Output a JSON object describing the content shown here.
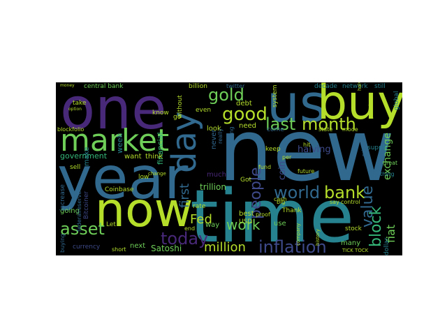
{
  "colors": {
    "background": "#000000",
    "palette": [
      "#440154",
      "#482878",
      "#3e4a89",
      "#31688e",
      "#26828e",
      "#1f9e89",
      "#35b779",
      "#6ece58",
      "#b5de2b",
      "#fde725"
    ]
  },
  "words": [
    {
      "text": "new",
      "color": "#31688e"
    },
    {
      "text": "year",
      "color": "#31688e"
    },
    {
      "text": "time",
      "color": "#26828e"
    },
    {
      "text": "now",
      "color": "#b5de2b"
    },
    {
      "text": "one",
      "color": "#482878"
    },
    {
      "text": "us",
      "color": "#31688e"
    },
    {
      "text": "buy",
      "color": "#b5de2b"
    },
    {
      "text": "market",
      "color": "#6ece58"
    },
    {
      "text": "day",
      "color": "#31688e"
    },
    {
      "text": "good",
      "color": "#b5de2b"
    },
    {
      "text": "gold",
      "color": "#6ece58"
    },
    {
      "text": "last",
      "color": "#6ece58"
    },
    {
      "text": "month",
      "color": "#b5de2b"
    },
    {
      "text": "world",
      "color": "#31688e"
    },
    {
      "text": "bank",
      "color": "#b5de2b"
    },
    {
      "text": "asset",
      "color": "#31688e"
    },
    {
      "text": "value",
      "color": "#35b779"
    },
    {
      "text": "block",
      "color": "#3e4a89"
    },
    {
      "text": "people",
      "color": "#6ece58"
    },
    {
      "text": "today",
      "color": "#482878"
    },
    {
      "text": "inflation",
      "color": "#3e4a89"
    },
    {
      "text": "work",
      "color": "#6ece58"
    },
    {
      "text": "million",
      "color": "#b5de2b"
    },
    {
      "text": "first",
      "color": "#31688e"
    },
    {
      "text": "Fed",
      "color": "#b5de2b"
    },
    {
      "text": "fiat",
      "color": "#6ece58"
    },
    {
      "text": "exchange",
      "color": "#6ece58"
    },
    {
      "text": "halving",
      "color": "#3e4a89"
    },
    {
      "text": "coin",
      "color": "#3e4a89"
    },
    {
      "text": "trillion",
      "color": "#6ece58"
    },
    {
      "text": "Satoshi",
      "color": "#6ece58"
    },
    {
      "text": "people",
      "color": "#6ece58"
    },
    {
      "text": "government",
      "color": "#35b779"
    },
    {
      "text": "financial",
      "color": "#35b779"
    },
    {
      "text": "week",
      "color": "#26828e"
    },
    {
      "text": "make",
      "color": "#26828e"
    },
    {
      "text": "central bank",
      "color": "#6ece58"
    },
    {
      "text": "want",
      "color": "#b5de2b"
    },
    {
      "text": "think",
      "color": "#b5de2b"
    },
    {
      "text": "debt",
      "color": "#b5de2b"
    },
    {
      "text": "need",
      "color": "#b5de2b"
    },
    {
      "text": "look",
      "color": "#b5de2b"
    },
    {
      "text": "never",
      "color": "#31688e"
    },
    {
      "text": "much",
      "color": "#482878"
    },
    {
      "text": "use",
      "color": "#6ece58"
    },
    {
      "text": "way",
      "color": "#6ece58"
    },
    {
      "text": "best",
      "color": "#b5de2b"
    },
    {
      "text": "USD",
      "color": "#b5de2b"
    },
    {
      "text": "many",
      "color": "#6ece58"
    },
    {
      "text": "next",
      "color": "#6ece58"
    },
    {
      "text": "going",
      "color": "#6ece58"
    },
    {
      "text": "system",
      "color": "#b5de2b"
    },
    {
      "text": "keep",
      "color": "#b5de2b"
    },
    {
      "text": "come",
      "color": "#31688e"
    },
    {
      "text": "go",
      "color": "#b5de2b"
    },
    {
      "text": "know",
      "color": "#b5de2b"
    },
    {
      "text": "even",
      "color": "#b5de2b"
    },
    {
      "text": "billion",
      "color": "#b5de2b"
    },
    {
      "text": "without",
      "color": "#b5de2b"
    },
    {
      "text": "take",
      "color": "#b5de2b"
    },
    {
      "text": "sell",
      "color": "#b5de2b"
    },
    {
      "text": "increase",
      "color": "#31688e"
    },
    {
      "text": "Bitcoiner",
      "color": "#3e4a89"
    },
    {
      "text": "federalreserve",
      "color": "#31688e"
    },
    {
      "text": "buying",
      "color": "#31688e"
    },
    {
      "text": "currency",
      "color": "#3e4a89"
    },
    {
      "text": "short",
      "color": "#b5de2b"
    },
    {
      "text": "Coinbase",
      "color": "#b5de2b"
    },
    {
      "text": "low",
      "color": "#b5de2b"
    },
    {
      "text": "rate",
      "color": "#b5de2b"
    },
    {
      "text": "Let",
      "color": "#b5de2b"
    },
    {
      "text": "Got",
      "color": "#b5de2b"
    },
    {
      "text": "fund",
      "color": "#b5de2b"
    },
    {
      "text": "Thank",
      "color": "#b5de2b"
    },
    {
      "text": "stock",
      "color": "#b5de2b"
    },
    {
      "text": "dollar",
      "color": "#26828e"
    },
    {
      "text": "supply",
      "color": "#26828e"
    },
    {
      "text": "network",
      "color": "#26828e"
    },
    {
      "text": "decade",
      "color": "#26828e"
    },
    {
      "text": "still",
      "color": "#26828e"
    },
    {
      "text": "global",
      "color": "#26828e"
    },
    {
      "text": "thing",
      "color": "#26828e"
    },
    {
      "text": "great",
      "color": "#6ece58"
    },
    {
      "text": "hit",
      "color": "#b5de2b"
    },
    {
      "text": "end",
      "color": "#b5de2b"
    },
    {
      "text": "blockfolio",
      "color": "#b5de2b"
    },
    {
      "text": "state",
      "color": "#b5de2b"
    },
    {
      "text": "twitter",
      "color": "#31688e"
    },
    {
      "text": "mode",
      "color": "#b5de2b"
    },
    {
      "text": "cash",
      "color": "#b5de2b"
    },
    {
      "text": "big",
      "color": "#b5de2b"
    },
    {
      "text": "say",
      "color": "#b5de2b"
    },
    {
      "text": "control",
      "color": "#b5de2b"
    },
    {
      "text": "proof",
      "color": "#b5de2b"
    },
    {
      "text": "future",
      "color": "#b5de2b"
    },
    {
      "text": "per",
      "color": "#b5de2b"
    },
    {
      "text": "really",
      "color": "#31688e"
    },
    {
      "text": "getting",
      "color": "#31688e"
    },
    {
      "text": "change",
      "color": "#b5de2b"
    },
    {
      "text": "TICK TOCK",
      "color": "#b5de2b"
    },
    {
      "text": "history",
      "color": "#b5de2b"
    },
    {
      "text": "company",
      "color": "#b5de2b"
    },
    {
      "text": "money",
      "color": "#b5de2b"
    },
    {
      "text": "option",
      "color": "#b5de2b"
    },
    {
      "text": "private",
      "color": "#31688e"
    },
    {
      "text": "promise",
      "color": "#b5de2b"
    },
    {
      "text": "halvening",
      "color": "#b5de2b"
    }
  ]
}
